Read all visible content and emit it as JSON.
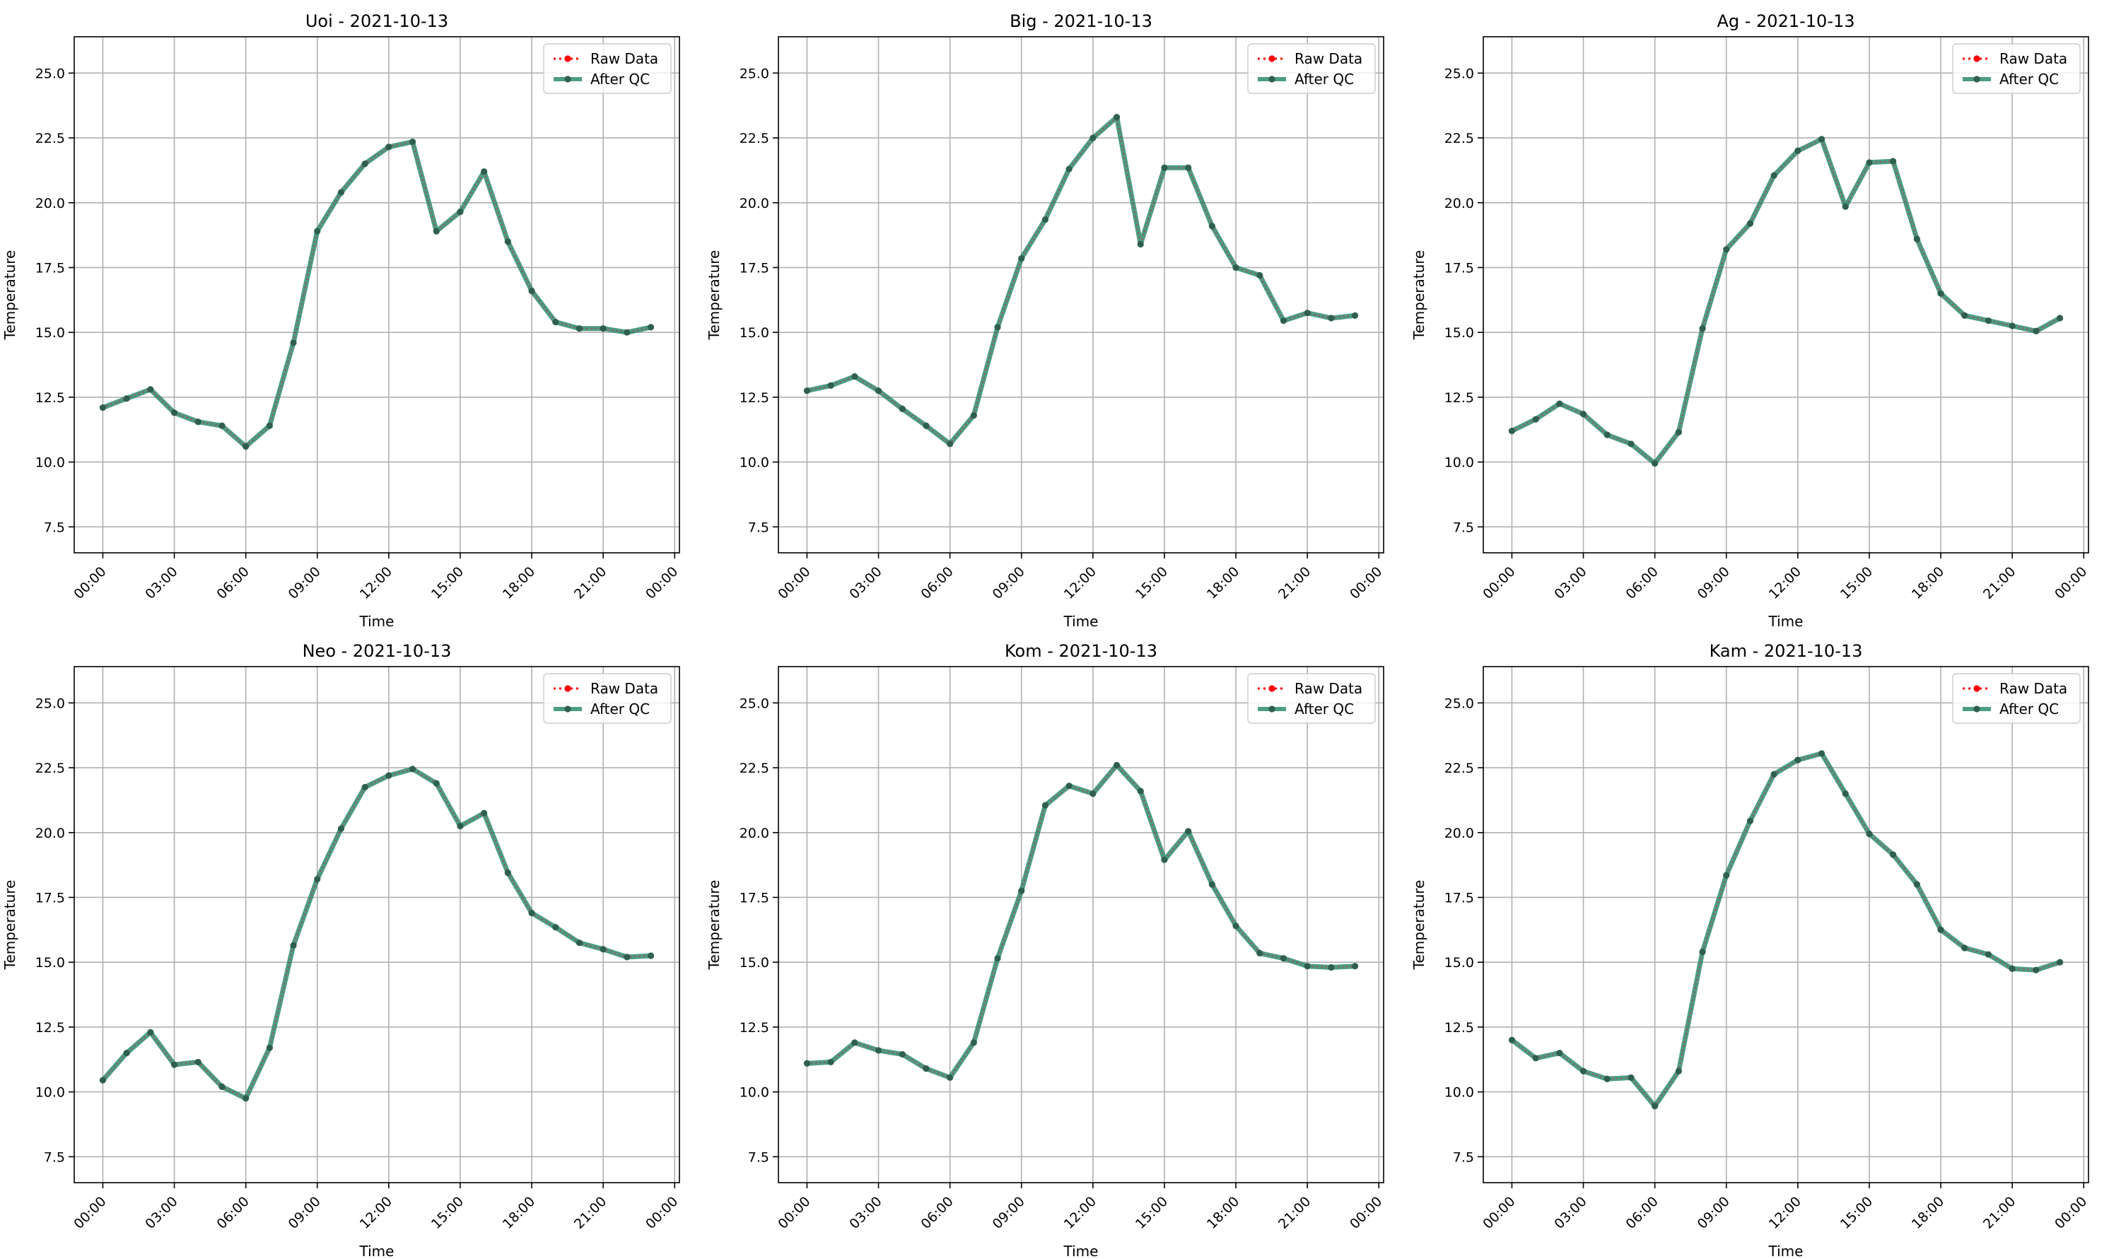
{
  "chart_data": [
    {
      "type": "line",
      "title": "Uoi - 2021-10-13",
      "xlabel": "Time",
      "ylabel": "Temperature",
      "x_ticks": [
        "00:00",
        "03:00",
        "06:00",
        "09:00",
        "12:00",
        "15:00",
        "18:00",
        "21:00",
        "00:00"
      ],
      "y_ticks": [
        "7.5",
        "10.0",
        "12.5",
        "15.0",
        "17.5",
        "20.0",
        "22.5",
        "25.0"
      ],
      "xlim_hours": [
        -1.2,
        24.2
      ],
      "ylim": [
        6.5,
        26.4
      ],
      "grid": true,
      "legend_position": "top-right",
      "series": [
        {
          "name": "Raw Data",
          "color": "#ff0000",
          "style": "dotted"
        },
        {
          "name": "After QC",
          "color": "#2e8b6e",
          "style": "solid"
        }
      ],
      "x": [
        "00:00",
        "01:00",
        "02:00",
        "03:00",
        "04:00",
        "05:00",
        "06:00",
        "07:00",
        "08:00",
        "09:00",
        "10:00",
        "11:00",
        "12:00",
        "13:00",
        "14:00",
        "15:00",
        "16:00",
        "17:00",
        "18:00",
        "19:00",
        "20:00",
        "21:00",
        "22:00",
        "23:00"
      ],
      "values": [
        12.1,
        12.45,
        12.8,
        11.9,
        11.55,
        11.4,
        10.6,
        11.4,
        14.6,
        18.9,
        20.4,
        21.5,
        22.15,
        22.35,
        18.9,
        19.65,
        21.2,
        18.5,
        16.6,
        15.4,
        15.15,
        15.15,
        15.0,
        15.2
      ]
    },
    {
      "type": "line",
      "title": "Big - 2021-10-13",
      "xlabel": "Time",
      "ylabel": "Temperature",
      "x_ticks": [
        "00:00",
        "03:00",
        "06:00",
        "09:00",
        "12:00",
        "15:00",
        "18:00",
        "21:00",
        "00:00"
      ],
      "y_ticks": [
        "7.5",
        "10.0",
        "12.5",
        "15.0",
        "17.5",
        "20.0",
        "22.5",
        "25.0"
      ],
      "xlim_hours": [
        -1.2,
        24.2
      ],
      "ylim": [
        6.5,
        26.4
      ],
      "grid": true,
      "legend_position": "top-right",
      "series": [
        {
          "name": "Raw Data",
          "color": "#ff0000",
          "style": "dotted"
        },
        {
          "name": "After QC",
          "color": "#2e8b6e",
          "style": "solid"
        }
      ],
      "x": [
        "00:00",
        "01:00",
        "02:00",
        "03:00",
        "04:00",
        "05:00",
        "06:00",
        "07:00",
        "08:00",
        "09:00",
        "10:00",
        "11:00",
        "12:00",
        "13:00",
        "14:00",
        "15:00",
        "16:00",
        "17:00",
        "18:00",
        "19:00",
        "20:00",
        "21:00",
        "22:00",
        "23:00"
      ],
      "values": [
        12.75,
        12.95,
        13.3,
        12.75,
        12.05,
        11.4,
        10.7,
        11.8,
        15.2,
        17.85,
        19.35,
        21.3,
        22.5,
        23.3,
        18.4,
        21.35,
        21.35,
        19.1,
        17.5,
        17.2,
        15.45,
        15.75,
        15.55,
        15.65
      ]
    },
    {
      "type": "line",
      "title": "Ag - 2021-10-13",
      "xlabel": "Time",
      "ylabel": "Temperature",
      "x_ticks": [
        "00:00",
        "03:00",
        "06:00",
        "09:00",
        "12:00",
        "15:00",
        "18:00",
        "21:00",
        "00:00"
      ],
      "y_ticks": [
        "7.5",
        "10.0",
        "12.5",
        "15.0",
        "17.5",
        "20.0",
        "22.5",
        "25.0"
      ],
      "xlim_hours": [
        -1.2,
        24.2
      ],
      "ylim": [
        6.5,
        26.4
      ],
      "grid": true,
      "legend_position": "top-right",
      "series": [
        {
          "name": "Raw Data",
          "color": "#ff0000",
          "style": "dotted"
        },
        {
          "name": "After QC",
          "color": "#2e8b6e",
          "style": "solid"
        }
      ],
      "x": [
        "00:00",
        "01:00",
        "02:00",
        "03:00",
        "04:00",
        "05:00",
        "06:00",
        "07:00",
        "08:00",
        "09:00",
        "10:00",
        "11:00",
        "12:00",
        "13:00",
        "14:00",
        "15:00",
        "16:00",
        "17:00",
        "18:00",
        "19:00",
        "20:00",
        "21:00",
        "22:00",
        "23:00"
      ],
      "values": [
        11.2,
        11.65,
        12.25,
        11.85,
        11.05,
        10.7,
        9.95,
        11.15,
        15.15,
        18.2,
        19.2,
        21.05,
        22.0,
        22.45,
        19.85,
        21.55,
        21.6,
        18.6,
        16.5,
        15.65,
        15.45,
        15.25,
        15.05,
        15.55
      ]
    },
    {
      "type": "line",
      "title": "Neo - 2021-10-13",
      "xlabel": "Time",
      "ylabel": "Temperature",
      "x_ticks": [
        "00:00",
        "03:00",
        "06:00",
        "09:00",
        "12:00",
        "15:00",
        "18:00",
        "21:00",
        "00:00"
      ],
      "y_ticks": [
        "7.5",
        "10.0",
        "12.5",
        "15.0",
        "17.5",
        "20.0",
        "22.5",
        "25.0"
      ],
      "xlim_hours": [
        -1.2,
        24.2
      ],
      "ylim": [
        6.5,
        26.4
      ],
      "grid": true,
      "legend_position": "top-right",
      "series": [
        {
          "name": "Raw Data",
          "color": "#ff0000",
          "style": "dotted"
        },
        {
          "name": "After QC",
          "color": "#2e8b6e",
          "style": "solid"
        }
      ],
      "x": [
        "00:00",
        "01:00",
        "02:00",
        "03:00",
        "04:00",
        "05:00",
        "06:00",
        "07:00",
        "08:00",
        "09:00",
        "10:00",
        "11:00",
        "12:00",
        "13:00",
        "14:00",
        "15:00",
        "16:00",
        "17:00",
        "18:00",
        "19:00",
        "20:00",
        "21:00",
        "22:00",
        "23:00"
      ],
      "values": [
        10.45,
        11.5,
        12.3,
        11.05,
        11.15,
        10.2,
        9.75,
        11.7,
        15.65,
        18.2,
        20.15,
        21.75,
        22.2,
        22.45,
        21.9,
        20.25,
        20.75,
        18.45,
        16.9,
        16.35,
        15.75,
        15.5,
        15.2,
        15.25
      ]
    },
    {
      "type": "line",
      "title": "Kom - 2021-10-13",
      "xlabel": "Time",
      "ylabel": "Temperature",
      "x_ticks": [
        "00:00",
        "03:00",
        "06:00",
        "09:00",
        "12:00",
        "15:00",
        "18:00",
        "21:00",
        "00:00"
      ],
      "y_ticks": [
        "7.5",
        "10.0",
        "12.5",
        "15.0",
        "17.5",
        "20.0",
        "22.5",
        "25.0"
      ],
      "xlim_hours": [
        -1.2,
        24.2
      ],
      "ylim": [
        6.5,
        26.4
      ],
      "grid": true,
      "legend_position": "top-right",
      "series": [
        {
          "name": "Raw Data",
          "color": "#ff0000",
          "style": "dotted"
        },
        {
          "name": "After QC",
          "color": "#2e8b6e",
          "style": "solid"
        }
      ],
      "x": [
        "00:00",
        "01:00",
        "02:00",
        "03:00",
        "04:00",
        "05:00",
        "06:00",
        "07:00",
        "08:00",
        "09:00",
        "10:00",
        "11:00",
        "12:00",
        "13:00",
        "14:00",
        "15:00",
        "16:00",
        "17:00",
        "18:00",
        "19:00",
        "20:00",
        "21:00",
        "22:00",
        "23:00"
      ],
      "values": [
        11.1,
        11.15,
        11.9,
        11.6,
        11.45,
        10.9,
        10.55,
        11.9,
        15.15,
        17.75,
        21.05,
        21.8,
        21.5,
        22.6,
        21.6,
        18.95,
        20.05,
        18.0,
        16.4,
        15.35,
        15.15,
        14.85,
        14.8,
        14.85
      ]
    },
    {
      "type": "line",
      "title": "Kam - 2021-10-13",
      "xlabel": "Time",
      "ylabel": "Temperature",
      "x_ticks": [
        "00:00",
        "03:00",
        "06:00",
        "09:00",
        "12:00",
        "15:00",
        "18:00",
        "21:00",
        "00:00"
      ],
      "y_ticks": [
        "7.5",
        "10.0",
        "12.5",
        "15.0",
        "17.5",
        "20.0",
        "22.5",
        "25.0"
      ],
      "xlim_hours": [
        -1.2,
        24.2
      ],
      "ylim": [
        6.5,
        26.4
      ],
      "grid": true,
      "legend_position": "top-right",
      "series": [
        {
          "name": "Raw Data",
          "color": "#ff0000",
          "style": "dotted"
        },
        {
          "name": "After QC",
          "color": "#2e8b6e",
          "style": "solid"
        }
      ],
      "x": [
        "00:00",
        "01:00",
        "02:00",
        "03:00",
        "04:00",
        "05:00",
        "06:00",
        "07:00",
        "08:00",
        "09:00",
        "10:00",
        "11:00",
        "12:00",
        "13:00",
        "14:00",
        "15:00",
        "16:00",
        "17:00",
        "18:00",
        "19:00",
        "20:00",
        "21:00",
        "22:00",
        "23:00"
      ],
      "values": [
        12.0,
        11.3,
        11.5,
        10.8,
        10.5,
        10.55,
        9.45,
        10.8,
        15.4,
        18.35,
        20.45,
        22.25,
        22.8,
        23.05,
        21.5,
        19.95,
        19.15,
        18.0,
        16.25,
        15.55,
        15.3,
        14.75,
        14.7,
        15.0
      ]
    }
  ]
}
